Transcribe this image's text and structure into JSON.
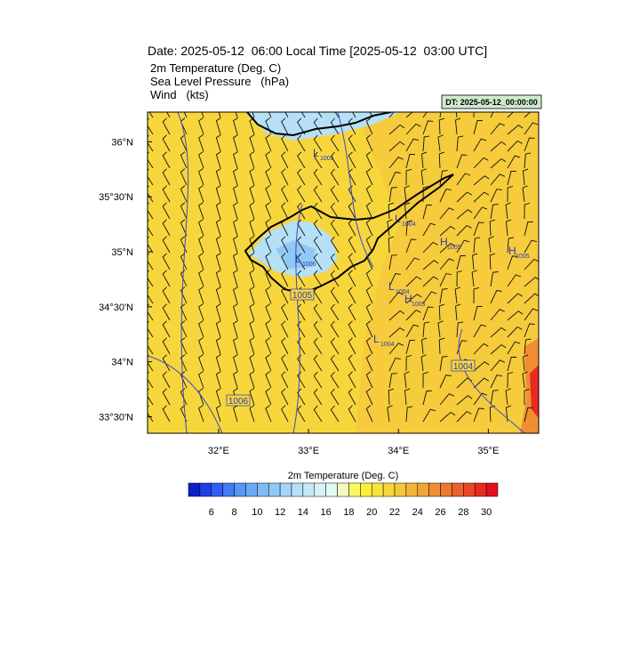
{
  "header": {
    "title": "Date: 2025-05-12  06:00 Local Time [2025-05-12  03:00 UTC]",
    "lines": [
      "2m Temperature (Deg. C)",
      "Sea Level Pressure   (hPa)",
      "Wind   (kts)"
    ],
    "dt_label": "DT: 2025-05-12_00:00:00"
  },
  "map": {
    "xlim": [
      31.21,
      35.56
    ],
    "ylim": [
      33.35,
      36.27
    ],
    "xticks": [
      {
        "value": 32,
        "label": "32°E"
      },
      {
        "value": 33,
        "label": "33°E"
      },
      {
        "value": 34,
        "label": "34°E"
      },
      {
        "value": 35,
        "label": "35°E"
      }
    ],
    "yticks": [
      {
        "value": 36,
        "label": "36°N"
      },
      {
        "value": 35.5,
        "label": "35°30'N"
      },
      {
        "value": 35,
        "label": "35°N"
      },
      {
        "value": 34.5,
        "label": "34°30'N"
      },
      {
        "value": 34,
        "label": "34°N"
      },
      {
        "value": 33.5,
        "label": "33°30'N"
      }
    ],
    "pressure_labels": [
      {
        "mark": "L",
        "value": "1005"
      },
      {
        "mark": "L",
        "value": "1004"
      },
      {
        "mark": "H",
        "value": "1005"
      },
      {
        "mark": "H",
        "value": "1005"
      },
      {
        "mark": "L",
        "value": "1006"
      },
      {
        "mark": "L",
        "value": "1004"
      },
      {
        "mark": "H",
        "value": "1005"
      },
      {
        "mark": "L",
        "value": "1004"
      }
    ],
    "contour_boxes": [
      "1004",
      "1006",
      "1005"
    ]
  },
  "colorbar": {
    "title": "2m Temperature (Deg. C)",
    "range": [
      4,
      31
    ],
    "ticks": [
      6,
      8,
      10,
      12,
      14,
      16,
      18,
      20,
      22,
      24,
      26,
      28,
      30
    ],
    "colors": [
      "#0a1ecc",
      "#1e3ee6",
      "#2f5ff2",
      "#3f7df5",
      "#5596f7",
      "#6aaaf7",
      "#7fbaf5",
      "#92c8f5",
      "#a6d5f5",
      "#b6e0f5",
      "#c6eaf5",
      "#d6f2f5",
      "#e4f8f2",
      "#f2fcc0",
      "#fafa60",
      "#faf03c",
      "#f8e43c",
      "#f7d63c",
      "#f5c83c",
      "#f4b63a",
      "#f2a436",
      "#f08f32",
      "#ee782e",
      "#ec602a",
      "#ea4626",
      "#e82a22",
      "#e60e1e"
    ]
  }
}
